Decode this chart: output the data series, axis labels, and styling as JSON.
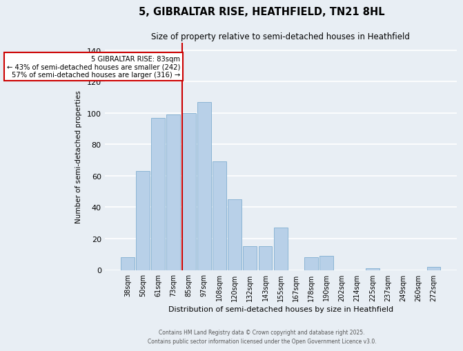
{
  "title": "5, GIBRALTAR RISE, HEATHFIELD, TN21 8HL",
  "subtitle": "Size of property relative to semi-detached houses in Heathfield",
  "xlabel": "Distribution of semi-detached houses by size in Heathfield",
  "ylabel": "Number of semi-detached properties",
  "bar_labels": [
    "38sqm",
    "50sqm",
    "61sqm",
    "73sqm",
    "85sqm",
    "97sqm",
    "108sqm",
    "120sqm",
    "132sqm",
    "143sqm",
    "155sqm",
    "167sqm",
    "178sqm",
    "190sqm",
    "202sqm",
    "214sqm",
    "225sqm",
    "237sqm",
    "249sqm",
    "260sqm",
    "272sqm"
  ],
  "bar_values": [
    8,
    63,
    97,
    99,
    100,
    107,
    69,
    45,
    15,
    15,
    27,
    0,
    8,
    9,
    0,
    0,
    1,
    0,
    0,
    0,
    2
  ],
  "bar_color": "#b8d0e8",
  "bar_edge_color": "#8ab4d4",
  "property_line_index": 4,
  "property_sqm": 83,
  "annotation_title": "5 GIBRALTAR RISE: 83sqm",
  "annotation_line1": "← 43% of semi-detached houses are smaller (242)",
  "annotation_line2": "57% of semi-detached houses are larger (316) →",
  "annotation_box_color": "#ffffff",
  "annotation_box_edge": "#cc0000",
  "property_line_color": "#cc0000",
  "ylim": [
    0,
    145
  ],
  "yticks": [
    0,
    20,
    40,
    60,
    80,
    100,
    120,
    140
  ],
  "background_color": "#e8eef4",
  "grid_color": "#ffffff",
  "footer_line1": "Contains HM Land Registry data © Crown copyright and database right 2025.",
  "footer_line2": "Contains public sector information licensed under the Open Government Licence v3.0."
}
